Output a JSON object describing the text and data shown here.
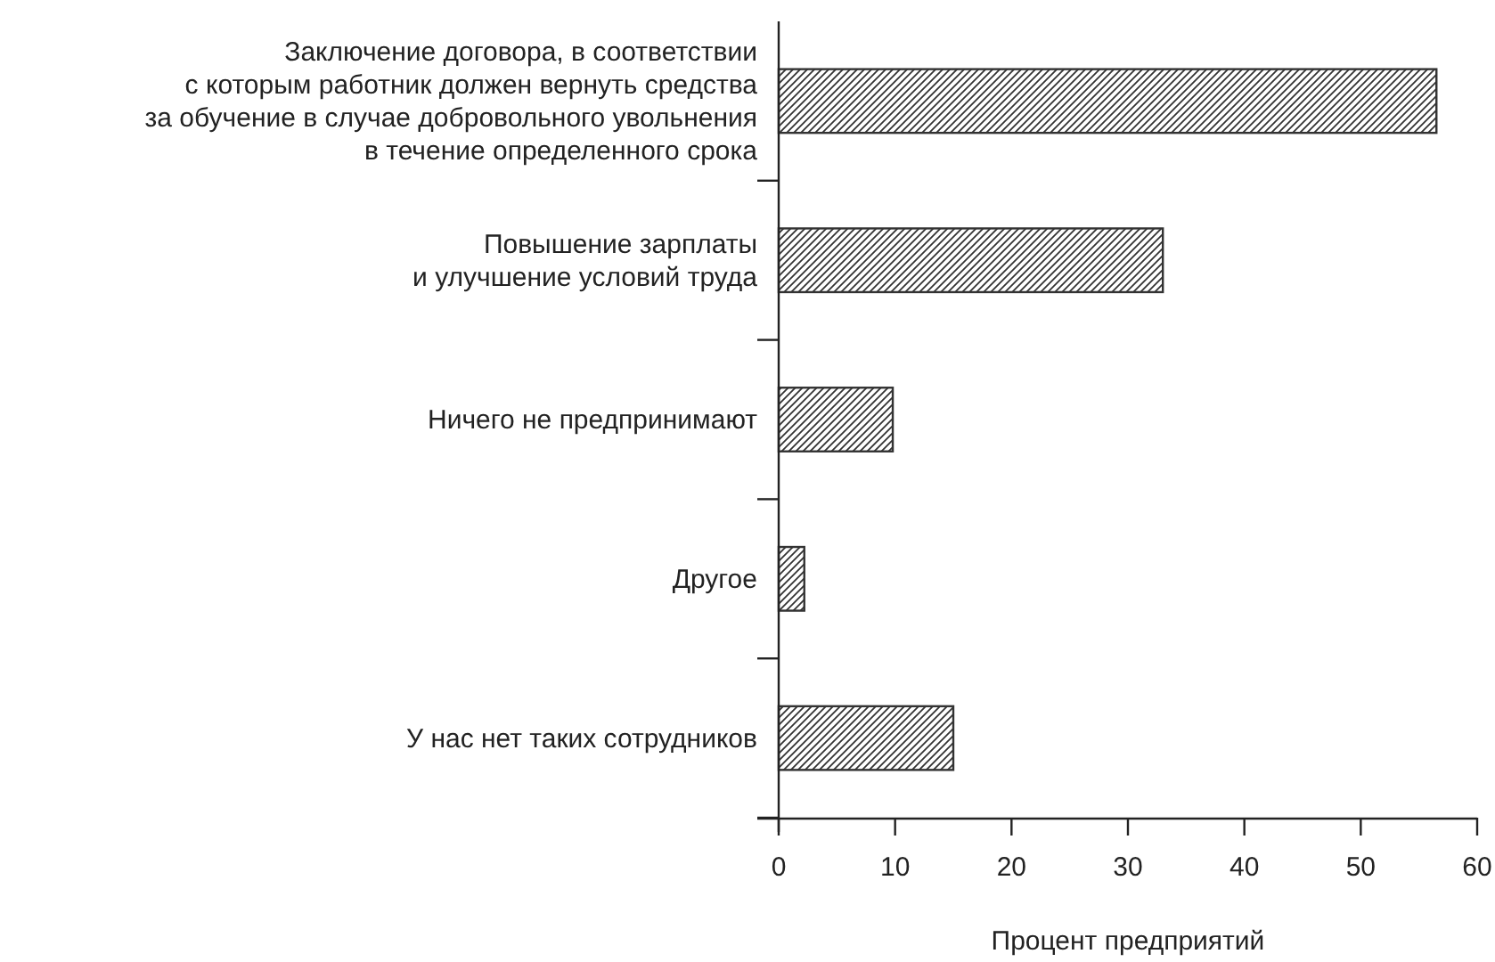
{
  "chart_data": {
    "type": "bar",
    "orientation": "horizontal",
    "xlabel": "Процент предприятий",
    "categories": [
      "Заключение договора, в соответствии\nс которым работник должен вернуть средства\nза обучение в случае добровольного увольнения\nв течение определенного срока",
      "Повышение зарплаты\nи улучшение условий труда",
      "Ничего не предпринимают",
      "Другое",
      "У нас нет таких сотрудников"
    ],
    "values": [
      56.5,
      33,
      9.8,
      2.2,
      15
    ],
    "color": "#333333",
    "xlim": [
      0,
      60
    ],
    "xticks": [
      0,
      10,
      20,
      30,
      40,
      50,
      60
    ]
  }
}
